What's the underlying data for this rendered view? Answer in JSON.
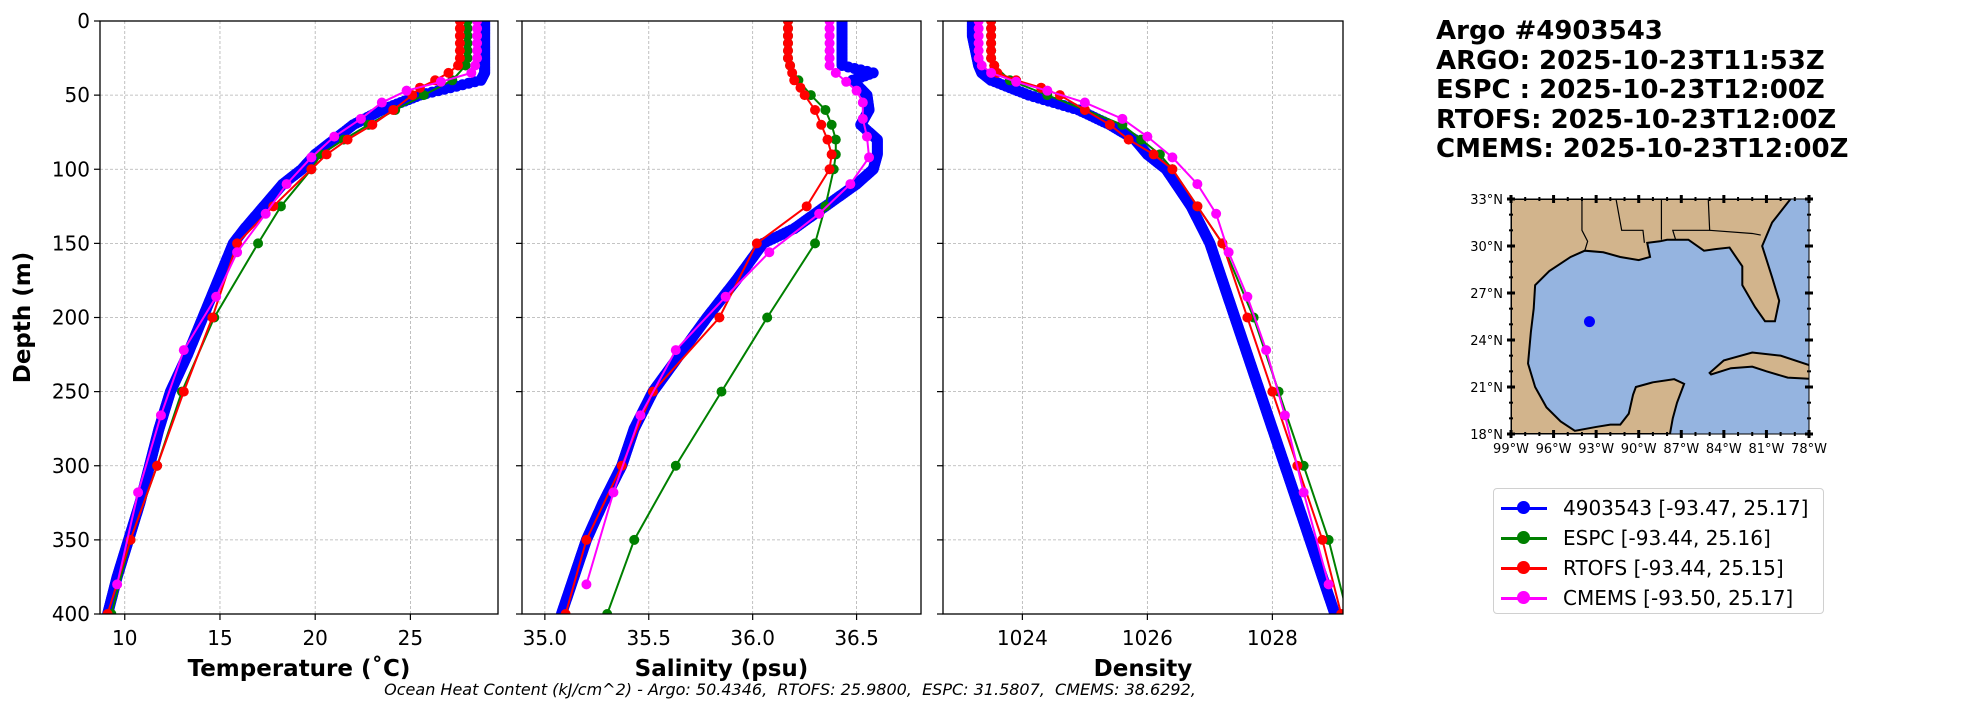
{
  "info": {
    "title": "Argo #4903543",
    "lines": [
      "ARGO: 2025-10-23T11:53Z",
      "ESPC : 2025-10-23T12:00Z",
      "RTOFS: 2025-10-23T12:00Z",
      "CMEMS: 2025-10-23T12:00Z"
    ]
  },
  "legend": [
    {
      "label": "4903543 [-93.47, 25.17]",
      "color": "#0000ff"
    },
    {
      "label": "ESPC [-93.44, 25.16]",
      "color": "#008000"
    },
    {
      "label": "RTOFS [-93.44, 25.15]",
      "color": "#ff0000"
    },
    {
      "label": "CMEMS [-93.50, 25.17]",
      "color": "#ff00ff"
    }
  ],
  "ohc_text": "Ocean Heat Content (kJ/cm^2) - Argo: 50.4346,  RTOFS: 25.9800,  ESPC: 31.5807,  CMEMS: 38.6292,",
  "map": {
    "lon_range": [
      -99,
      -78
    ],
    "lat_range": [
      18,
      33
    ],
    "lon_ticks": [
      -99,
      -96,
      -93,
      -90,
      -87,
      -84,
      -81,
      -78
    ],
    "lon_labels": [
      "99°W",
      "96°W",
      "93°W",
      "90°W",
      "87°W",
      "84°W",
      "81°W",
      "78°W"
    ],
    "lat_ticks": [
      18,
      21,
      24,
      27,
      30,
      33
    ],
    "lat_labels": [
      "18°N",
      "21°N",
      "24°N",
      "27°N",
      "30°N",
      "33°N"
    ],
    "float_position": {
      "lon": -93.47,
      "lat": 25.17
    },
    "land_color": "#d2b48c",
    "water_color": "#95b4e0"
  },
  "chart_data": [
    {
      "type": "line",
      "xlabel": "Temperature (˚C)",
      "ylabel": "Depth (m)",
      "xlim": [
        8.7,
        29.6
      ],
      "ylim": [
        400,
        0
      ],
      "xticks": [
        10,
        15,
        20,
        25
      ],
      "xtick_labels": [
        "10",
        "15",
        "20",
        "25"
      ],
      "yticks": [
        0,
        50,
        100,
        150,
        200,
        250,
        300,
        350,
        400
      ],
      "ytick_labels": [
        "0",
        "50",
        "100",
        "150",
        "200",
        "250",
        "300",
        "350",
        "400"
      ],
      "grid": true,
      "series": [
        {
          "name": "4903543",
          "color": "#0000ff",
          "dense": true,
          "depth": [
            0,
            10,
            20,
            30,
            35,
            40,
            50,
            60,
            70,
            80,
            90,
            100,
            110,
            125,
            140,
            150,
            175,
            200,
            225,
            250,
            275,
            300,
            325,
            350,
            375,
            400
          ],
          "values": [
            28.9,
            28.9,
            28.9,
            28.9,
            28.9,
            28.7,
            25.5,
            23.5,
            22.0,
            21.0,
            20.0,
            19.3,
            18.3,
            17.3,
            16.3,
            15.7,
            14.9,
            14.1,
            13.3,
            12.4,
            11.8,
            11.3,
            10.8,
            10.2,
            9.6,
            9.1
          ]
        },
        {
          "name": "ESPC",
          "color": "#008000",
          "depth": [
            0,
            5,
            10,
            15,
            20,
            25,
            30,
            40,
            50,
            60,
            70,
            80,
            90,
            100,
            125,
            150,
            200,
            250,
            300,
            350,
            400
          ],
          "values": [
            28.0,
            28.0,
            28.0,
            28.0,
            28.0,
            28.0,
            27.9,
            27.2,
            25.7,
            24.2,
            22.8,
            21.5,
            20.3,
            19.8,
            18.2,
            17.0,
            14.7,
            13.0,
            11.7,
            10.3,
            9.3
          ]
        },
        {
          "name": "RTOFS",
          "color": "#ff0000",
          "depth": [
            0,
            5,
            10,
            15,
            20,
            25,
            30,
            35,
            40,
            45,
            50,
            60,
            70,
            80,
            90,
            100,
            125,
            150,
            200,
            250,
            300,
            350,
            400
          ],
          "values": [
            27.6,
            27.6,
            27.6,
            27.6,
            27.6,
            27.6,
            27.5,
            27.0,
            26.3,
            25.5,
            25.1,
            24.1,
            23.0,
            21.7,
            20.6,
            19.8,
            17.8,
            15.9,
            14.6,
            13.1,
            11.7,
            10.3,
            9.1
          ]
        },
        {
          "name": "CMEMS",
          "color": "#ff00ff",
          "depth": [
            0,
            5,
            10,
            15,
            20,
            25,
            30,
            35,
            41,
            47,
            55,
            66,
            78,
            92,
            110,
            130,
            156,
            186,
            222,
            266,
            318,
            380
          ],
          "values": [
            28.5,
            28.5,
            28.5,
            28.5,
            28.5,
            28.5,
            28.4,
            28.2,
            26.6,
            24.8,
            23.5,
            22.4,
            21.0,
            19.8,
            18.5,
            17.4,
            15.9,
            14.8,
            13.1,
            11.9,
            10.7,
            9.6
          ]
        }
      ]
    },
    {
      "type": "line",
      "xlabel": "Salinity (psu)",
      "ylabel": "",
      "xlim": [
        34.89,
        36.81
      ],
      "ylim": [
        400,
        0
      ],
      "xticks": [
        35.0,
        35.5,
        36.0,
        36.5
      ],
      "xtick_labels": [
        "35.0",
        "35.5",
        "36.0",
        "36.5"
      ],
      "yticks": [
        0,
        50,
        100,
        150,
        200,
        250,
        300,
        350,
        400
      ],
      "grid": true,
      "series": [
        {
          "name": "4903543",
          "color": "#0000ff",
          "dense": true,
          "depth": [
            0,
            10,
            20,
            30,
            35,
            40,
            50,
            60,
            70,
            80,
            90,
            100,
            110,
            125,
            140,
            150,
            175,
            200,
            225,
            250,
            275,
            300,
            325,
            350,
            375,
            400
          ],
          "values": [
            36.43,
            36.43,
            36.43,
            36.43,
            36.58,
            36.48,
            36.55,
            36.56,
            36.52,
            36.6,
            36.6,
            36.58,
            36.5,
            36.35,
            36.2,
            36.05,
            35.92,
            35.78,
            35.65,
            35.52,
            35.43,
            35.37,
            35.28,
            35.2,
            35.14,
            35.08
          ]
        },
        {
          "name": "ESPC",
          "color": "#008000",
          "depth": [
            0,
            5,
            10,
            15,
            20,
            25,
            30,
            40,
            50,
            60,
            70,
            80,
            90,
            100,
            125,
            150,
            200,
            250,
            300,
            350,
            400
          ],
          "values": [
            36.17,
            36.17,
            36.17,
            36.17,
            36.17,
            36.17,
            36.18,
            36.22,
            36.28,
            36.35,
            36.38,
            36.4,
            36.4,
            36.39,
            36.35,
            36.3,
            36.07,
            35.85,
            35.63,
            35.43,
            35.3
          ]
        },
        {
          "name": "RTOFS",
          "color": "#ff0000",
          "depth": [
            0,
            5,
            10,
            15,
            20,
            25,
            30,
            35,
            40,
            45,
            50,
            60,
            70,
            80,
            90,
            100,
            125,
            150,
            200,
            250,
            300,
            350,
            400
          ],
          "values": [
            36.17,
            36.17,
            36.17,
            36.17,
            36.17,
            36.17,
            36.18,
            36.19,
            36.2,
            36.23,
            36.25,
            36.3,
            36.33,
            36.36,
            36.38,
            36.37,
            36.26,
            36.02,
            35.84,
            35.52,
            35.37,
            35.2,
            35.1
          ]
        },
        {
          "name": "CMEMS",
          "color": "#ff00ff",
          "depth": [
            0,
            5,
            10,
            15,
            20,
            25,
            30,
            35,
            41,
            47,
            55,
            66,
            78,
            92,
            110,
            130,
            156,
            186,
            222,
            266,
            318,
            380
          ],
          "values": [
            36.37,
            36.37,
            36.37,
            36.37,
            36.37,
            36.37,
            36.37,
            36.4,
            36.45,
            36.5,
            36.53,
            36.53,
            36.55,
            36.56,
            36.47,
            36.32,
            36.08,
            35.87,
            35.63,
            35.46,
            35.33,
            35.2
          ]
        }
      ]
    },
    {
      "type": "line",
      "xlabel": "Density",
      "ylabel": "",
      "xlim": [
        1022.73,
        1029.13
      ],
      "ylim": [
        400,
        0
      ],
      "xticks": [
        1024,
        1026,
        1028
      ],
      "xtick_labels": [
        "1024",
        "1026",
        "1028"
      ],
      "yticks": [
        0,
        50,
        100,
        150,
        200,
        250,
        300,
        350,
        400
      ],
      "grid": true,
      "series": [
        {
          "name": "4903543",
          "color": "#0000ff",
          "dense": true,
          "depth": [
            0,
            10,
            20,
            30,
            35,
            40,
            50,
            60,
            70,
            80,
            90,
            100,
            125,
            150,
            200,
            250,
            300,
            350,
            400
          ],
          "values": [
            1023.2,
            1023.2,
            1023.25,
            1023.3,
            1023.35,
            1023.5,
            1024.1,
            1024.9,
            1025.4,
            1025.8,
            1026.0,
            1026.3,
            1026.7,
            1027.0,
            1027.4,
            1027.8,
            1028.2,
            1028.6,
            1029.0
          ]
        },
        {
          "name": "ESPC",
          "color": "#008000",
          "depth": [
            0,
            5,
            10,
            15,
            20,
            25,
            30,
            40,
            50,
            60,
            70,
            80,
            90,
            100,
            125,
            150,
            200,
            250,
            300,
            350,
            400
          ],
          "values": [
            1023.5,
            1023.5,
            1023.5,
            1023.5,
            1023.5,
            1023.5,
            1023.55,
            1023.8,
            1024.4,
            1025.0,
            1025.6,
            1025.9,
            1026.2,
            1026.4,
            1026.8,
            1027.2,
            1027.7,
            1028.1,
            1028.5,
            1028.9,
            1029.2
          ]
        },
        {
          "name": "RTOFS",
          "color": "#ff0000",
          "depth": [
            0,
            5,
            10,
            15,
            20,
            25,
            30,
            35,
            40,
            45,
            50,
            60,
            70,
            80,
            90,
            100,
            125,
            150,
            200,
            250,
            300,
            350,
            400
          ],
          "values": [
            1023.5,
            1023.5,
            1023.5,
            1023.5,
            1023.5,
            1023.5,
            1023.55,
            1023.6,
            1023.9,
            1024.3,
            1024.6,
            1025.0,
            1025.4,
            1025.7,
            1026.1,
            1026.4,
            1026.8,
            1027.2,
            1027.6,
            1028.0,
            1028.4,
            1028.8,
            1029.1
          ]
        },
        {
          "name": "CMEMS",
          "color": "#ff00ff",
          "depth": [
            0,
            5,
            10,
            15,
            20,
            25,
            30,
            35,
            41,
            47,
            55,
            66,
            78,
            92,
            110,
            130,
            156,
            186,
            222,
            266,
            318,
            380
          ],
          "values": [
            1023.3,
            1023.3,
            1023.3,
            1023.3,
            1023.3,
            1023.3,
            1023.35,
            1023.5,
            1023.9,
            1024.4,
            1025.0,
            1025.6,
            1026.0,
            1026.4,
            1026.8,
            1027.1,
            1027.3,
            1027.6,
            1027.9,
            1028.2,
            1028.5,
            1028.9
          ]
        }
      ]
    }
  ]
}
